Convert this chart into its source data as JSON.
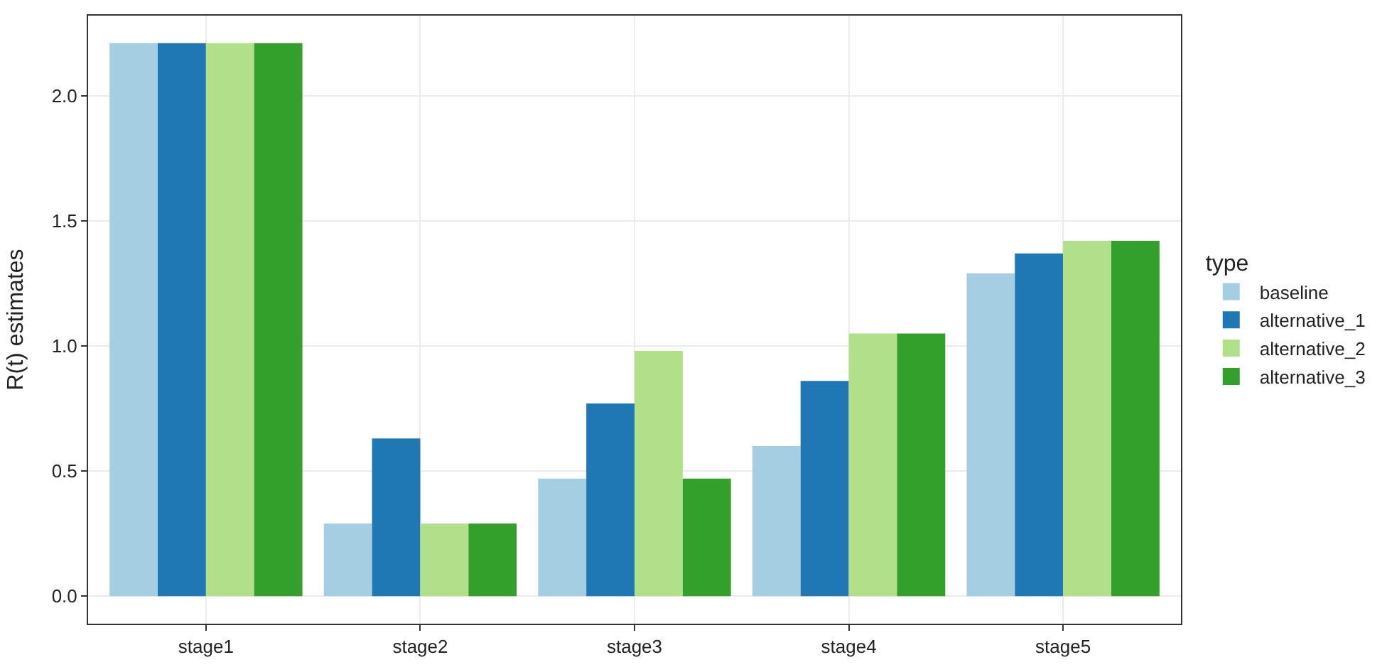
{
  "chart_data": {
    "type": "bar",
    "ylabel": "R(t) estimates",
    "legend_title": "type",
    "categories": [
      "stage1",
      "stage2",
      "stage3",
      "stage4",
      "stage5"
    ],
    "series": [
      {
        "name": "baseline",
        "color": "#a6cee3",
        "values": [
          2.21,
          0.29,
          0.47,
          0.6,
          1.29
        ]
      },
      {
        "name": "alternative_1",
        "color": "#1f78b4",
        "values": [
          2.21,
          0.63,
          0.77,
          0.86,
          1.37
        ]
      },
      {
        "name": "alternative_2",
        "color": "#b2df8a",
        "values": [
          2.21,
          0.29,
          0.98,
          1.05,
          1.42
        ]
      },
      {
        "name": "alternative_3",
        "color": "#33a02c",
        "values": [
          2.21,
          0.29,
          0.47,
          1.05,
          1.42
        ]
      }
    ],
    "ylim": [
      -0.11,
      2.32
    ],
    "yticks": [
      {
        "value": 0,
        "label": "0.0"
      },
      0.5,
      {
        "value": 1,
        "label": "1.0"
      },
      1.5,
      {
        "value": 2,
        "label": "2.0"
      }
    ],
    "grid": true,
    "legend": "right"
  }
}
